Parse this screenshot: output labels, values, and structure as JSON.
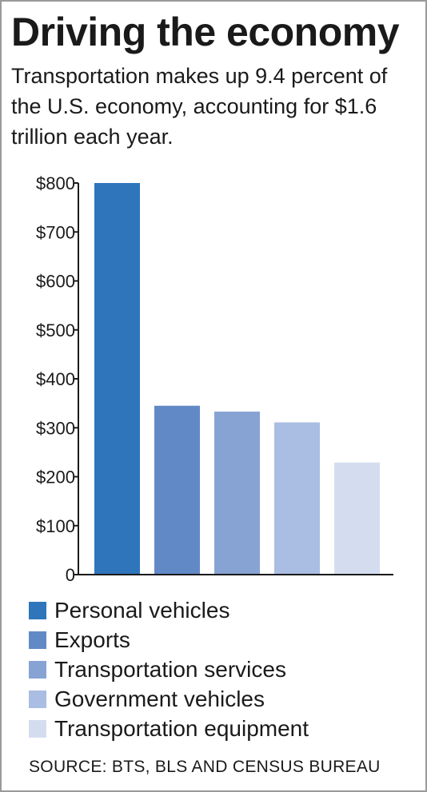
{
  "title": "Driving the economy",
  "subtitle": "Transportation makes up 9.4 percent of the U.S. economy, accounting for $1.6 trillion each year.",
  "source": "SOURCE: BTS, BLS AND CENSUS BUREAU",
  "chart_data": {
    "type": "bar",
    "categories": [
      "Personal vehicles",
      "Exports",
      "Transportation services",
      "Government vehicles",
      "Transportation equipment"
    ],
    "values": [
      800,
      345,
      333,
      311,
      229
    ],
    "colors": [
      "#2e75bc",
      "#6189c6",
      "#87a3d4",
      "#aabde2",
      "#d4ddf0"
    ],
    "ylim": [
      0,
      800
    ],
    "yticks": [
      0,
      100,
      200,
      300,
      400,
      500,
      600,
      700,
      800
    ],
    "ytick_labels": [
      "0",
      "$100",
      "$200",
      "$300",
      "$400",
      "$500",
      "$600",
      "$700",
      "$800"
    ],
    "title": "",
    "xlabel": "",
    "ylabel": "",
    "legend_position": "bottom",
    "grid": false
  }
}
